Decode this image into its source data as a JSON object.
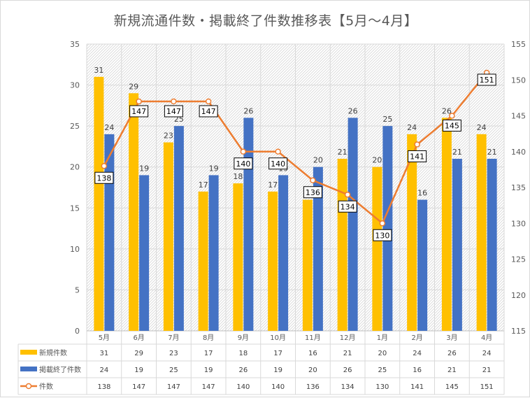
{
  "chart_data": {
    "type": "bar",
    "title": "新規流通件数・掲載終了件数推移表【5月～4月】",
    "categories": [
      "5月",
      "6月",
      "7月",
      "8月",
      "9月",
      "10月",
      "11月",
      "12月",
      "1月",
      "2月",
      "3月",
      "4月"
    ],
    "series": [
      {
        "name": "新規件数",
        "kind": "bar",
        "axis": "left",
        "color": "#ffc000",
        "values": [
          31,
          29,
          23,
          17,
          18,
          17,
          16,
          21,
          20,
          24,
          26,
          24
        ]
      },
      {
        "name": "掲載終了件数",
        "kind": "bar",
        "axis": "left",
        "color": "#4472c4",
        "values": [
          24,
          19,
          25,
          19,
          26,
          19,
          20,
          26,
          25,
          16,
          21,
          21
        ]
      },
      {
        "name": "件数",
        "kind": "line",
        "axis": "right",
        "color": "#ed7d31",
        "values": [
          138,
          147,
          147,
          147,
          140,
          140,
          136,
          134,
          130,
          141,
          145,
          151
        ]
      }
    ],
    "y_left": {
      "min": 0,
      "max": 35,
      "step": 5
    },
    "y_right": {
      "min": 115,
      "max": 155,
      "step": 5
    },
    "data_table": true,
    "legend": "data-table",
    "grid": true
  }
}
